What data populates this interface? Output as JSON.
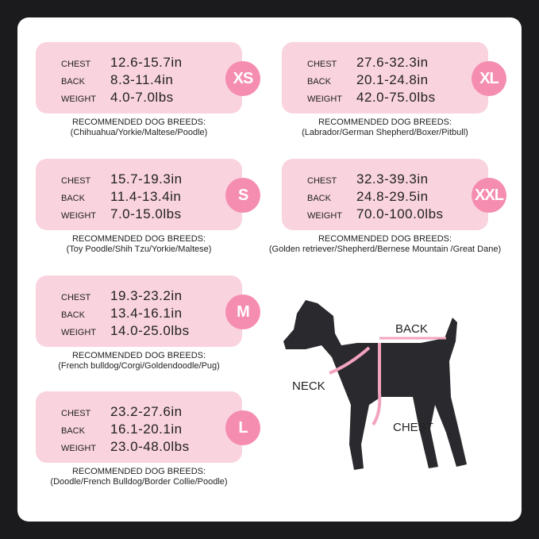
{
  "labels": {
    "chest": "CHEST",
    "back": "BACK",
    "weight": "WEIGHT",
    "recommended": "RECOMMENDED DOG BREEDS:"
  },
  "sizes": [
    {
      "size": "XS",
      "chest": "12.6-15.7in",
      "back": "8.3-11.4in",
      "weight": "4.0-7.0lbs",
      "breeds": "(Chihuahua/Yorkie/Maltese/Poodle)"
    },
    {
      "size": "S",
      "chest": "15.7-19.3in",
      "back": "11.4-13.4in",
      "weight": "7.0-15.0lbs",
      "breeds": "(Toy Poodle/Shih Tzu/Yorkie/Maltese)"
    },
    {
      "size": "M",
      "chest": "19.3-23.2in",
      "back": "13.4-16.1in",
      "weight": "14.0-25.0lbs",
      "breeds": "(French bulldog/Corgi/Goldendoodle/Pug)"
    },
    {
      "size": "L",
      "chest": "23.2-27.6in",
      "back": "16.1-20.1in",
      "weight": "23.0-48.0lbs",
      "breeds": "(Doodle/French Bulldog/Border Collie/Poodle)"
    },
    {
      "size": "XL",
      "chest": "27.6-32.3in",
      "back": "20.1-24.8in",
      "weight": "42.0-75.0lbs",
      "breeds": "(Labrador/German Shepherd/Boxer/Pitbull)"
    },
    {
      "size": "XXL",
      "chest": "32.3-39.3in",
      "back": "24.8-29.5in",
      "weight": "70.0-100.0lbs",
      "breeds": "(Golden retriever/Shepherd/Bernese Mountain /Great Dane)"
    }
  ],
  "diagram": {
    "back": "BACK",
    "neck": "NECK",
    "chest": "CHEST"
  },
  "colors": {
    "box": "#f9d3de",
    "badge": "#f58db0",
    "background": "#1b1b1d"
  }
}
